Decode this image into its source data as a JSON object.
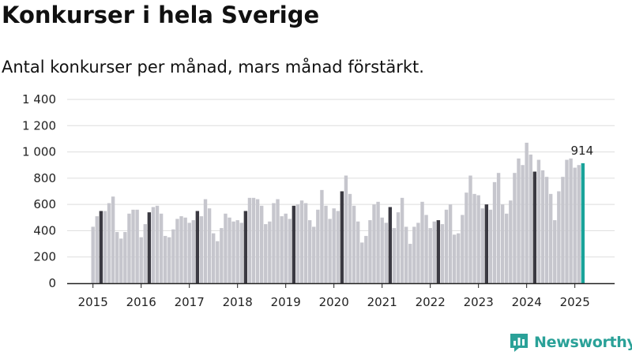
{
  "title": "Konkurser i hela Sverige",
  "subtitle": "Antal konkurser per månad, mars månad förstärkt.",
  "brand": {
    "name": "Newsworthy",
    "icon": "newsworthy-logo-icon"
  },
  "chart_data": {
    "type": "bar",
    "x_start": "2015-01",
    "x_ticks": [
      "2015",
      "2016",
      "2017",
      "2018",
      "2019",
      "2020",
      "2021",
      "2022",
      "2023",
      "2024",
      "2025"
    ],
    "ylim": [
      0,
      1400
    ],
    "y_ticks": [
      0,
      200,
      400,
      600,
      800,
      1000,
      1200,
      1400
    ],
    "y_tick_labels": [
      "0",
      "200",
      "400",
      "600",
      "800",
      "1 000",
      "1 200",
      "1 400"
    ],
    "highlight_month": "mars",
    "grid": true,
    "colors": {
      "bar": "#c6c6cd",
      "highlight": "#3b3a42",
      "last": "#1aa39a",
      "grid": "#dddddd",
      "axis": "#222222"
    },
    "values": [
      430,
      510,
      550,
      550,
      610,
      660,
      390,
      340,
      390,
      530,
      560,
      560,
      350,
      450,
      540,
      580,
      590,
      530,
      360,
      350,
      410,
      490,
      510,
      500,
      460,
      480,
      550,
      510,
      640,
      570,
      380,
      320,
      420,
      530,
      500,
      470,
      480,
      460,
      550,
      650,
      650,
      640,
      590,
      450,
      470,
      610,
      640,
      510,
      530,
      490,
      590,
      600,
      630,
      610,
      480,
      430,
      560,
      710,
      590,
      490,
      570,
      550,
      700,
      820,
      680,
      590,
      470,
      310,
      360,
      480,
      600,
      620,
      500,
      460,
      580,
      420,
      540,
      650,
      430,
      300,
      430,
      460,
      620,
      520,
      420,
      470,
      480,
      450,
      560,
      600,
      370,
      380,
      520,
      690,
      820,
      680,
      670,
      570,
      600,
      560,
      770,
      840,
      600,
      530,
      630,
      840,
      950,
      900,
      1070,
      980,
      850,
      940,
      860,
      810,
      680,
      480,
      700,
      810,
      940,
      950,
      880,
      900,
      914
    ],
    "last_value_label": "914"
  }
}
